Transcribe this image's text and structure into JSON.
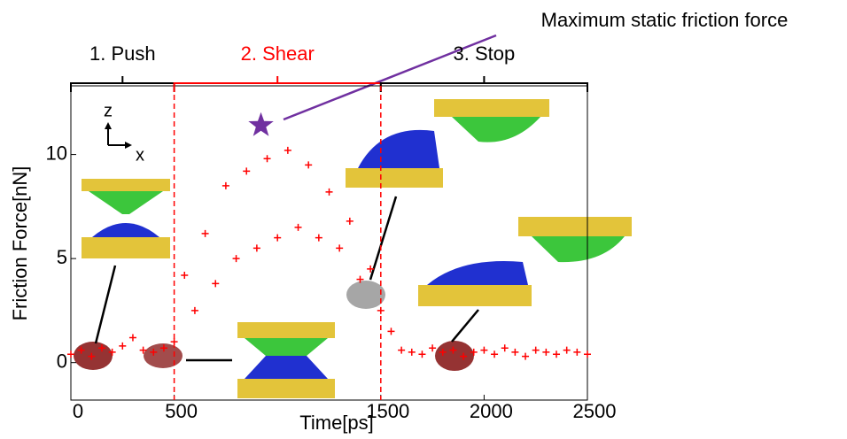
{
  "chart_data": {
    "type": "scatter",
    "xlabel": "Time[ps]",
    "ylabel": "Friction Force[nN]",
    "xlim": [
      0,
      2500
    ],
    "ylim": [
      -1.8,
      13.3
    ],
    "xticks": [
      0,
      500,
      1500,
      2000,
      2500
    ],
    "yticks": [
      0,
      5,
      10
    ],
    "series": [
      {
        "color": "#ff0000",
        "x": [
          0,
          50,
          100,
          150,
          200,
          250,
          300,
          350,
          400,
          450,
          500,
          550,
          600,
          650,
          700,
          750,
          800,
          850,
          900,
          950,
          1000,
          1050,
          1100,
          1150,
          1200,
          1250,
          1300,
          1350,
          1400,
          1450,
          1500,
          1550,
          1600,
          1650,
          1700,
          1750,
          1800,
          1850,
          1900,
          1950,
          2000,
          2050,
          2100,
          2150,
          2200,
          2250,
          2300,
          2350,
          2400,
          2450,
          2500
        ],
        "values": [
          0.4,
          0.6,
          0.3,
          0.7,
          0.5,
          0.8,
          1.2,
          0.6,
          0.5,
          0.7,
          1.0,
          4.2,
          2.5,
          6.2,
          3.8,
          8.5,
          5.0,
          9.2,
          5.5,
          9.8,
          6.0,
          10.2,
          6.5,
          9.5,
          6.0,
          8.2,
          5.5,
          6.8,
          4.0,
          4.5,
          2.5,
          1.5,
          0.6,
          0.5,
          0.4,
          0.7,
          0.5,
          0.6,
          0.3,
          0.5,
          0.6,
          0.4,
          0.7,
          0.5,
          0.3,
          0.6,
          0.5,
          0.4,
          0.6,
          0.5,
          0.4
        ]
      }
    ],
    "phases": [
      {
        "label": "1. Push",
        "start": 0,
        "end": 500,
        "color": "#000000"
      },
      {
        "label": "2. Shear",
        "start": 500,
        "end": 1500,
        "color": "#ff0000"
      },
      {
        "label": "3. Stop",
        "start": 1500,
        "end": 2500,
        "color": "#000000"
      }
    ],
    "annotation": {
      "text": "Maximum static friction force",
      "x": 920,
      "y": 11.4,
      "color": "#7030a0"
    },
    "inset_axes_labels": [
      "z",
      "x"
    ]
  }
}
